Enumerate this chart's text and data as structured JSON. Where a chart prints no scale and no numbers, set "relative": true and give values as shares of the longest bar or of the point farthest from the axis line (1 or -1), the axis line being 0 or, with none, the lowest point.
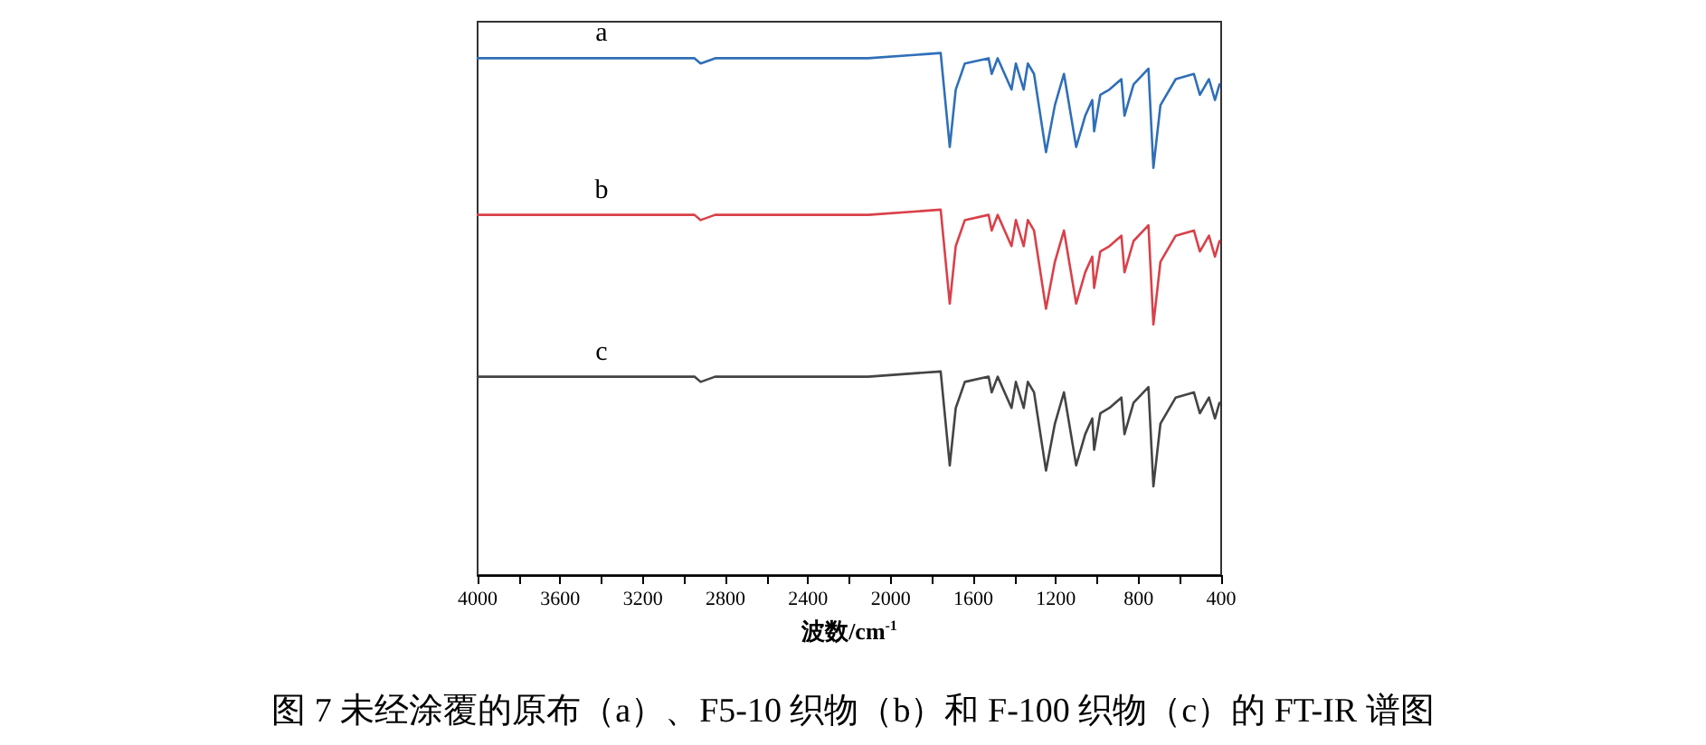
{
  "chart_data": {
    "type": "line",
    "relative": true,
    "title": "图 7 未经涂覆的原布（a）、F5-10 织物（b）和 F-100 织物（c）的 FT-IR 谱图",
    "xlabel": "波数/cm$^{-1}$",
    "x": [
      4000,
      3400,
      2950,
      2920,
      2850,
      2108,
      1758,
      1714,
      1685,
      1641,
      1526,
      1511,
      1482,
      1415,
      1394,
      1356,
      1336,
      1306,
      1248,
      1205,
      1161,
      1102,
      1058,
      1024,
      1015,
      985,
      941,
      883,
      868,
      824,
      752,
      728,
      694,
      620,
      532,
      503,
      459,
      430,
      408
    ],
    "xlim": [
      4000,
      400
    ],
    "xticks": [
      4000,
      {
        "value": 3800,
        "label": null
      },
      3600,
      {
        "value": 3400,
        "label": null
      },
      3200,
      {
        "value": 3000,
        "label": null
      },
      2800,
      {
        "value": 2600,
        "label": null
      },
      2400,
      {
        "value": 2200,
        "label": null
      },
      2000,
      {
        "value": 1800,
        "label": null
      },
      1600,
      {
        "value": 1400,
        "label": null
      },
      1200,
      {
        "value": 1000,
        "label": null
      },
      800,
      {
        "value": 600,
        "label": null
      },
      400
    ],
    "tick_labels": "x",
    "grid": false,
    "legend": false,
    "marker": "none",
    "line_style": "solid",
    "series": [
      {
        "name": "a",
        "color": "#2f6fb8",
        "values": [
          0.99,
          0.99,
          0.99,
          0.98,
          0.99,
          0.99,
          1.0,
          0.82,
          0.93,
          0.98,
          0.99,
          0.96,
          0.99,
          0.93,
          0.98,
          0.93,
          0.98,
          0.96,
          0.81,
          0.9,
          0.96,
          0.82,
          0.88,
          0.91,
          0.85,
          0.92,
          0.93,
          0.95,
          0.88,
          0.94,
          0.97,
          0.78,
          0.9,
          0.95,
          0.96,
          0.92,
          0.95,
          0.91,
          0.94
        ]
      },
      {
        "name": "b",
        "color": "#d9414a",
        "values": [
          0.69,
          0.69,
          0.69,
          0.68,
          0.69,
          0.69,
          0.7,
          0.52,
          0.63,
          0.68,
          0.69,
          0.66,
          0.69,
          0.63,
          0.68,
          0.63,
          0.68,
          0.66,
          0.51,
          0.6,
          0.66,
          0.52,
          0.58,
          0.61,
          0.55,
          0.62,
          0.63,
          0.65,
          0.58,
          0.64,
          0.67,
          0.48,
          0.6,
          0.65,
          0.66,
          0.62,
          0.65,
          0.61,
          0.64
        ]
      },
      {
        "name": "c",
        "color": "#444444",
        "values": [
          0.38,
          0.38,
          0.38,
          0.37,
          0.38,
          0.38,
          0.39,
          0.21,
          0.32,
          0.37,
          0.38,
          0.35,
          0.38,
          0.32,
          0.37,
          0.32,
          0.37,
          0.35,
          0.2,
          0.29,
          0.35,
          0.21,
          0.27,
          0.3,
          0.24,
          0.31,
          0.32,
          0.34,
          0.27,
          0.33,
          0.36,
          0.17,
          0.29,
          0.34,
          0.35,
          0.31,
          0.34,
          0.3,
          0.33
        ]
      }
    ]
  }
}
